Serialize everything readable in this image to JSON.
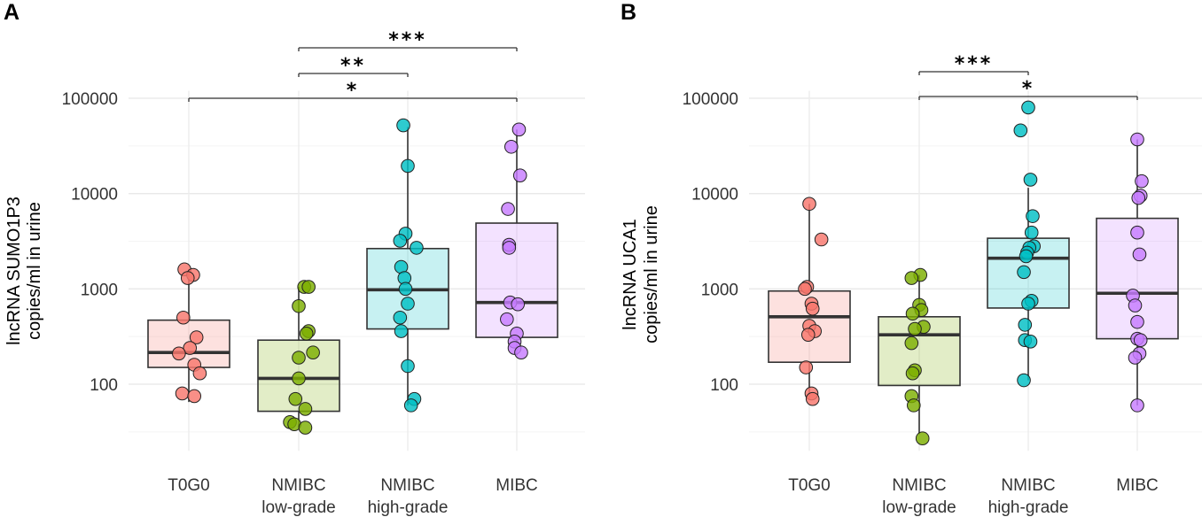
{
  "chart_data": [
    {
      "panel": "A",
      "type": "box",
      "ylabel_line1": "lncRNA SUMO1P3",
      "ylabel_line2": "copies/ml in urine",
      "yscale": "log",
      "ylim": [
        20,
        120000
      ],
      "yticks": [
        100,
        1000,
        10000,
        100000
      ],
      "ytick_labels": [
        "100",
        "1000",
        "10000",
        "100000"
      ],
      "categories": [
        "T0G0",
        "NMIBC",
        "NMIBC",
        "MIBC"
      ],
      "category_sublabels": [
        "",
        "low-grade",
        "high-grade",
        ""
      ],
      "colors": [
        "#F8766D",
        "#7CAE00",
        "#00BFC4",
        "#C77CFF"
      ],
      "boxes": [
        {
          "q1": 150,
          "median": 215,
          "q3": 470,
          "wlo": 65,
          "whi": 1600
        },
        {
          "q1": 52,
          "median": 115,
          "q3": 290,
          "wlo": 35,
          "whi": 1050
        },
        {
          "q1": 380,
          "median": 980,
          "q3": 2650,
          "wlo": 60,
          "whi": 50000
        },
        {
          "q1": 310,
          "median": 720,
          "q3": 4900,
          "wlo": 200,
          "whi": 47000
        }
      ],
      "points": [
        [
          1600,
          1400,
          1300,
          500,
          310,
          240,
          210,
          160,
          130,
          80,
          75
        ],
        [
          1050,
          1050,
          660,
          360,
          340,
          215,
          190,
          115,
          70,
          55,
          40,
          38,
          35
        ],
        [
          52000,
          19500,
          3800,
          3200,
          2700,
          1700,
          1300,
          1000,
          700,
          500,
          360,
          155,
          70,
          60
        ],
        [
          47000,
          31000,
          15500,
          6900,
          2900,
          2700,
          720,
          690,
          480,
          340,
          280,
          240,
          215
        ]
      ],
      "jitter": [
        [
          -0.08,
          0.08,
          -0.02,
          -0.1,
          0.14,
          0.02,
          -0.18,
          0.1,
          0.2,
          -0.12,
          0.1
        ],
        [
          0.1,
          0.18,
          0.0,
          0.18,
          0.14,
          0.26,
          0.0,
          0.0,
          -0.06,
          0.12,
          -0.16,
          -0.08,
          0.12
        ],
        [
          -0.08,
          0.0,
          -0.04,
          -0.14,
          0.16,
          -0.12,
          -0.06,
          -0.04,
          0.0,
          -0.14,
          -0.12,
          0.0,
          0.12,
          0.06
        ],
        [
          0.04,
          -0.1,
          0.06,
          -0.16,
          -0.14,
          -0.14,
          -0.12,
          0.02,
          -0.18,
          0.0,
          -0.04,
          -0.04,
          0.08
        ]
      ],
      "significance": [
        {
          "from": 0,
          "to": 3,
          "label": "*"
        },
        {
          "from": 1,
          "to": 2,
          "label": "**"
        },
        {
          "from": 1,
          "to": 3,
          "label": "***"
        }
      ]
    },
    {
      "panel": "B",
      "type": "box",
      "ylabel_line1": "lncRNA UCA1",
      "ylabel_line2": "copies/ml in urine",
      "yscale": "log",
      "ylim": [
        20,
        120000
      ],
      "yticks": [
        100,
        1000,
        10000,
        100000
      ],
      "ytick_labels": [
        "100",
        "1000",
        "10000",
        "100000"
      ],
      "categories": [
        "T0G0",
        "NMIBC",
        "NMIBC",
        "MIBC"
      ],
      "category_sublabels": [
        "",
        "low-grade",
        "high-grade",
        ""
      ],
      "colors": [
        "#F8766D",
        "#7CAE00",
        "#00BFC4",
        "#C77CFF"
      ],
      "boxes": [
        {
          "q1": 170,
          "median": 510,
          "q3": 950,
          "wlo": 70,
          "whi": 7800
        },
        {
          "q1": 97,
          "median": 330,
          "q3": 510,
          "wlo": 30,
          "whi": 1400
        },
        {
          "q1": 630,
          "median": 2100,
          "q3": 3400,
          "wlo": 110,
          "whi": 11500
        },
        {
          "q1": 300,
          "median": 900,
          "q3": 5500,
          "wlo": 60,
          "whi": 37000
        }
      ],
      "points": [
        [
          7800,
          3300,
          1050,
          1000,
          700,
          620,
          410,
          360,
          330,
          150,
          80,
          70
        ],
        [
          1400,
          1300,
          680,
          600,
          550,
          400,
          380,
          270,
          140,
          130,
          75,
          60,
          27
        ],
        [
          80000,
          46000,
          14000,
          5800,
          3900,
          2800,
          2700,
          2400,
          2200,
          1500,
          750,
          700,
          420,
          290,
          280,
          110
        ],
        [
          37000,
          13500,
          9500,
          9000,
          3900,
          2300,
          850,
          670,
          450,
          300,
          290,
          210,
          190,
          60
        ]
      ],
      "jitter": [
        [
          0.0,
          0.22,
          -0.04,
          -0.08,
          0.04,
          0.06,
          0.0,
          0.1,
          -0.02,
          -0.06,
          0.04,
          0.06
        ],
        [
          0.02,
          -0.14,
          0.0,
          0.04,
          -0.12,
          0.08,
          -0.08,
          -0.14,
          -0.08,
          -0.12,
          -0.14,
          -0.1,
          0.06
        ],
        [
          0.0,
          -0.14,
          0.04,
          0.08,
          0.06,
          0.1,
          0.02,
          -0.02,
          -0.04,
          -0.08,
          0.06,
          0.0,
          -0.06,
          -0.06,
          0.04,
          -0.08
        ],
        [
          0.0,
          0.08,
          0.06,
          0.02,
          0.0,
          0.04,
          -0.08,
          -0.04,
          0.0,
          0.0,
          0.06,
          0.04,
          -0.04,
          0.0
        ]
      ],
      "significance": [
        {
          "from": 1,
          "to": 2,
          "label": "***"
        },
        {
          "from": 1,
          "to": 3,
          "label": "*"
        }
      ]
    }
  ],
  "panel_letters": [
    "A",
    "B"
  ]
}
